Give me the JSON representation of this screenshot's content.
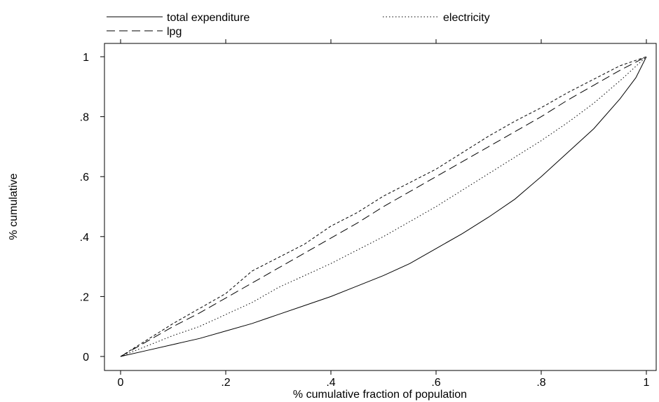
{
  "chart_data": {
    "type": "line",
    "title": "",
    "xlabel": "% cumulative fraction of population",
    "ylabel": "% cumulative",
    "xlim": [
      0,
      1
    ],
    "ylim": [
      0,
      1
    ],
    "x_ticks": [
      0,
      0.2,
      0.4,
      0.6,
      0.8,
      1
    ],
    "x_tick_labels": [
      "0",
      ".2",
      ".4",
      ".6",
      ".8",
      "1"
    ],
    "y_ticks": [
      0,
      0.2,
      0.4,
      0.6,
      0.8,
      1
    ],
    "y_tick_labels": [
      "0",
      ".2",
      ".4",
      ".6",
      ".8",
      "1"
    ],
    "grid": false,
    "legend_position": "top",
    "series": [
      {
        "name": "total expenditure",
        "style": "solid",
        "color": "#000000",
        "x": [
          0,
          0.05,
          0.1,
          0.15,
          0.2,
          0.25,
          0.3,
          0.35,
          0.4,
          0.45,
          0.5,
          0.55,
          0.6,
          0.65,
          0.7,
          0.75,
          0.8,
          0.85,
          0.9,
          0.95,
          0.98,
          1
        ],
        "y": [
          0,
          0.02,
          0.04,
          0.06,
          0.085,
          0.11,
          0.14,
          0.17,
          0.2,
          0.235,
          0.27,
          0.31,
          0.36,
          0.41,
          0.465,
          0.525,
          0.6,
          0.68,
          0.76,
          0.86,
          0.93,
          1
        ]
      },
      {
        "name": "electricity",
        "style": "dotted",
        "color": "#000000",
        "x": [
          0,
          0.05,
          0.1,
          0.15,
          0.2,
          0.25,
          0.3,
          0.35,
          0.4,
          0.45,
          0.5,
          0.55,
          0.6,
          0.65,
          0.7,
          0.75,
          0.8,
          0.85,
          0.9,
          0.95,
          1
        ],
        "y": [
          0,
          0.035,
          0.07,
          0.1,
          0.14,
          0.18,
          0.23,
          0.27,
          0.31,
          0.355,
          0.4,
          0.45,
          0.5,
          0.555,
          0.61,
          0.665,
          0.72,
          0.78,
          0.845,
          0.92,
          1
        ]
      },
      {
        "name": "lpg",
        "style": "dashed",
        "color": "#000000",
        "x": [
          0,
          0.05,
          0.1,
          0.15,
          0.2,
          0.25,
          0.3,
          0.35,
          0.4,
          0.45,
          0.5,
          0.55,
          0.6,
          0.65,
          0.7,
          0.75,
          0.8,
          0.85,
          0.9,
          0.95,
          1
        ],
        "y": [
          0,
          0.05,
          0.1,
          0.145,
          0.195,
          0.245,
          0.295,
          0.345,
          0.395,
          0.445,
          0.5,
          0.55,
          0.6,
          0.65,
          0.7,
          0.75,
          0.8,
          0.855,
          0.905,
          0.955,
          1
        ]
      },
      {
        "name": "",
        "style": "short-dashed",
        "color": "#000000",
        "x": [
          0,
          0.05,
          0.1,
          0.15,
          0.2,
          0.25,
          0.3,
          0.35,
          0.4,
          0.45,
          0.5,
          0.55,
          0.6,
          0.65,
          0.7,
          0.75,
          0.8,
          0.85,
          0.9,
          0.95,
          1
        ],
        "y": [
          0,
          0.055,
          0.11,
          0.16,
          0.21,
          0.285,
          0.33,
          0.375,
          0.435,
          0.48,
          0.535,
          0.58,
          0.625,
          0.68,
          0.735,
          0.785,
          0.83,
          0.88,
          0.925,
          0.97,
          1
        ]
      }
    ],
    "legend": [
      {
        "label": "total expenditure",
        "style": "solid"
      },
      {
        "label": "electricity",
        "style": "dotted"
      },
      {
        "label": "lpg",
        "style": "dashed"
      }
    ]
  }
}
